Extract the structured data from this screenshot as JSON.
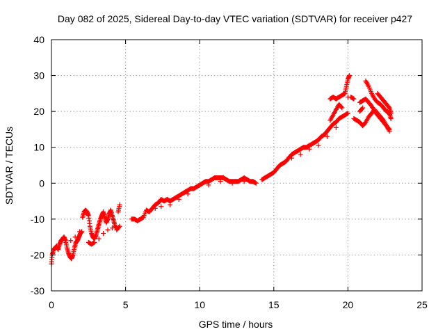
{
  "chart_data": {
    "type": "scatter",
    "title": "Day 082 of 2025, Sidereal Day-to-day VTEC variation (SDTVAR) for receiver p427",
    "xlabel": "GPS time / hours",
    "ylabel": "SDTVAR / TECUs",
    "xlim": [
      0,
      25
    ],
    "ylim": [
      -30,
      40
    ],
    "xticks": [
      "0",
      "5",
      "10",
      "15",
      "20",
      "25"
    ],
    "yticks": [
      "-30",
      "-20",
      "-10",
      "0",
      "10",
      "20",
      "30",
      "40"
    ],
    "grid": true,
    "marker": "+",
    "color": "#ff0000",
    "series": [
      {
        "name": "SDTVAR",
        "points": [
          [
            0.0,
            -22.5
          ],
          [
            0.05,
            -20.0
          ],
          [
            0.15,
            -18.5
          ],
          [
            0.25,
            -18.0
          ],
          [
            0.35,
            -17.5
          ],
          [
            0.45,
            -18.5
          ],
          [
            0.55,
            -17.0
          ],
          [
            0.65,
            -16.0
          ],
          [
            0.75,
            -15.5
          ],
          [
            0.85,
            -15.0
          ],
          [
            0.95,
            -16.0
          ],
          [
            1.05,
            -18.0
          ],
          [
            1.15,
            -19.5
          ],
          [
            1.25,
            -20.5
          ],
          [
            1.35,
            -21.0
          ],
          [
            1.45,
            -20.0
          ],
          [
            1.55,
            -18.0
          ],
          [
            1.65,
            -16.5
          ],
          [
            1.75,
            -16.0
          ],
          [
            1.85,
            -15.0
          ],
          [
            1.95,
            -14.0
          ],
          [
            2.05,
            -13.5
          ],
          [
            2.1,
            -9.5
          ],
          [
            2.2,
            -8.0
          ],
          [
            2.3,
            -7.5
          ],
          [
            2.4,
            -8.0
          ],
          [
            2.5,
            -9.0
          ],
          [
            2.6,
            -12.0
          ],
          [
            2.7,
            -14.0
          ],
          [
            2.8,
            -15.0
          ],
          [
            2.9,
            -15.5
          ],
          [
            3.0,
            -14.5
          ],
          [
            3.1,
            -13.0
          ],
          [
            3.2,
            -11.5
          ],
          [
            3.3,
            -10.0
          ],
          [
            3.4,
            -9.0
          ],
          [
            3.5,
            -8.0
          ],
          [
            3.6,
            -9.5
          ],
          [
            3.7,
            -11.0
          ],
          [
            3.8,
            -10.0
          ],
          [
            3.9,
            -8.5
          ],
          [
            4.0,
            -7.5
          ],
          [
            4.1,
            -9.0
          ],
          [
            4.2,
            -10.5
          ],
          [
            4.3,
            -12.0
          ],
          [
            4.4,
            -12.5
          ],
          [
            4.5,
            -8.0
          ],
          [
            4.6,
            -6.0
          ],
          [
            2.5,
            -16.5
          ],
          [
            2.7,
            -17.0
          ],
          [
            2.9,
            -16.5
          ],
          [
            3.2,
            -15.5
          ],
          [
            3.5,
            -14.0
          ],
          [
            3.8,
            -13.0
          ],
          [
            4.1,
            -12.5
          ],
          [
            4.4,
            -13.0
          ],
          [
            4.6,
            -12.0
          ],
          [
            1.3,
            -16.0
          ],
          [
            1.6,
            -15.0
          ],
          [
            1.9,
            -13.5
          ],
          [
            5.4,
            -10.0
          ],
          [
            5.6,
            -10.0
          ],
          [
            5.8,
            -10.5
          ],
          [
            6.0,
            -10.0
          ],
          [
            6.2,
            -9.5
          ],
          [
            6.4,
            -7.5
          ],
          [
            6.6,
            -8.0
          ],
          [
            6.8,
            -7.0
          ],
          [
            7.0,
            -6.0
          ],
          [
            7.2,
            -5.5
          ],
          [
            7.4,
            -4.5
          ],
          [
            7.6,
            -5.0
          ],
          [
            7.8,
            -4.5
          ],
          [
            8.0,
            -5.0
          ],
          [
            8.2,
            -4.5
          ],
          [
            8.4,
            -4.0
          ],
          [
            8.6,
            -3.5
          ],
          [
            8.8,
            -3.0
          ],
          [
            9.0,
            -2.5
          ],
          [
            9.2,
            -2.0
          ],
          [
            9.4,
            -1.5
          ],
          [
            9.6,
            -1.5
          ],
          [
            9.8,
            -1.0
          ],
          [
            10.0,
            -0.5
          ],
          [
            10.2,
            0.0
          ],
          [
            10.4,
            0.5
          ],
          [
            10.6,
            0.5
          ],
          [
            10.8,
            1.0
          ],
          [
            11.0,
            1.5
          ],
          [
            11.2,
            1.5
          ],
          [
            11.4,
            1.5
          ],
          [
            11.6,
            1.5
          ],
          [
            11.8,
            1.0
          ],
          [
            12.0,
            0.5
          ],
          [
            12.2,
            0.5
          ],
          [
            12.4,
            0.5
          ],
          [
            12.6,
            0.5
          ],
          [
            12.8,
            1.0
          ],
          [
            13.0,
            1.5
          ],
          [
            13.2,
            1.0
          ],
          [
            13.4,
            0.5
          ],
          [
            13.6,
            0.5
          ],
          [
            13.8,
            0.0
          ],
          [
            7.0,
            -7.0
          ],
          [
            7.4,
            -6.5
          ],
          [
            8.0,
            -6.0
          ],
          [
            8.6,
            -4.5
          ],
          [
            9.2,
            -3.0
          ],
          [
            10.6,
            -0.5
          ],
          [
            11.4,
            0.5
          ],
          [
            12.2,
            0.0
          ],
          [
            13.0,
            0.5
          ],
          [
            14.2,
            1.0
          ],
          [
            14.4,
            1.5
          ],
          [
            14.6,
            2.0
          ],
          [
            14.8,
            2.5
          ],
          [
            15.0,
            3.0
          ],
          [
            15.2,
            4.0
          ],
          [
            15.4,
            5.0
          ],
          [
            15.6,
            5.5
          ],
          [
            15.8,
            6.0
          ],
          [
            16.0,
            7.0
          ],
          [
            16.2,
            8.0
          ],
          [
            16.4,
            8.5
          ],
          [
            16.6,
            9.0
          ],
          [
            16.8,
            9.5
          ],
          [
            17.0,
            10.0
          ],
          [
            17.2,
            10.0
          ],
          [
            17.4,
            10.5
          ],
          [
            17.6,
            11.0
          ],
          [
            17.8,
            11.5
          ],
          [
            18.0,
            12.0
          ],
          [
            18.2,
            13.0
          ],
          [
            18.4,
            13.5
          ],
          [
            18.6,
            14.5
          ],
          [
            18.8,
            15.5
          ],
          [
            19.0,
            16.5
          ],
          [
            19.2,
            17.0
          ],
          [
            19.4,
            18.0
          ],
          [
            19.6,
            18.5
          ],
          [
            19.8,
            19.0
          ],
          [
            20.0,
            19.5
          ],
          [
            16.2,
            7.0
          ],
          [
            16.8,
            8.0
          ],
          [
            17.4,
            9.5
          ],
          [
            18.0,
            10.5
          ],
          [
            18.6,
            13.0
          ],
          [
            19.2,
            15.5
          ],
          [
            18.8,
            23.5
          ],
          [
            19.0,
            24.0
          ],
          [
            19.2,
            23.5
          ],
          [
            19.4,
            24.0
          ],
          [
            19.6,
            24.5
          ],
          [
            19.8,
            25.0
          ],
          [
            19.9,
            27.0
          ],
          [
            20.0,
            29.0
          ],
          [
            20.1,
            30.0
          ],
          [
            20.2,
            24.0
          ],
          [
            20.4,
            23.5
          ],
          [
            20.0,
            24.0
          ],
          [
            19.6,
            21.0
          ],
          [
            19.4,
            22.0
          ],
          [
            19.2,
            20.5
          ],
          [
            19.0,
            19.0
          ],
          [
            18.8,
            17.5
          ],
          [
            20.4,
            18.0
          ],
          [
            20.6,
            17.5
          ],
          [
            20.8,
            17.0
          ],
          [
            21.0,
            16.0
          ],
          [
            21.2,
            17.0
          ],
          [
            21.4,
            18.5
          ],
          [
            21.6,
            19.5
          ],
          [
            21.8,
            20.5
          ],
          [
            22.0,
            19.5
          ],
          [
            22.2,
            18.5
          ],
          [
            22.4,
            17.5
          ],
          [
            22.6,
            16.0
          ],
          [
            22.8,
            14.5
          ],
          [
            20.8,
            22.5
          ],
          [
            21.0,
            23.0
          ],
          [
            21.2,
            23.5
          ],
          [
            21.4,
            22.5
          ],
          [
            21.6,
            21.5
          ],
          [
            21.8,
            20.0
          ],
          [
            22.0,
            19.0
          ],
          [
            22.2,
            18.0
          ],
          [
            22.4,
            17.0
          ],
          [
            22.6,
            16.0
          ],
          [
            22.8,
            15.0
          ],
          [
            21.2,
            28.5
          ],
          [
            21.4,
            27.0
          ],
          [
            21.6,
            25.0
          ],
          [
            21.8,
            23.5
          ],
          [
            22.0,
            22.5
          ],
          [
            22.2,
            22.0
          ],
          [
            22.4,
            21.0
          ],
          [
            22.6,
            20.0
          ],
          [
            22.8,
            19.5
          ],
          [
            22.9,
            18.0
          ],
          [
            22.0,
            25.0
          ],
          [
            22.2,
            24.0
          ],
          [
            22.4,
            23.0
          ],
          [
            22.6,
            22.0
          ],
          [
            22.8,
            21.0
          ],
          [
            22.9,
            19.5
          ],
          [
            21.0,
            21.0
          ],
          [
            20.8,
            20.0
          ]
        ]
      }
    ]
  }
}
